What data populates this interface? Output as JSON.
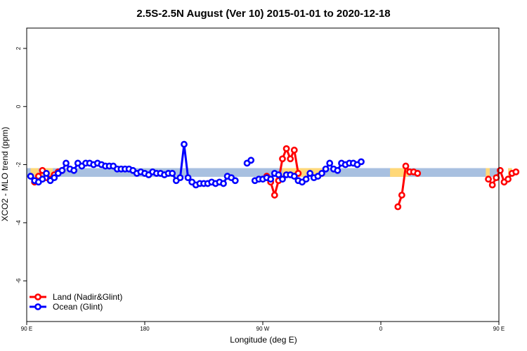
{
  "chart_data": {
    "type": "line",
    "title": "2.5S-2.5N August (Ver 10)   2015-01-01 to 2020-12-18",
    "xlabel": "Longitude (deg E)",
    "ylabel": "XCO2 - MLO trend (ppm)",
    "xlim": [
      90,
      450
    ],
    "ylim": [
      -7.4,
      2.7
    ],
    "x_ticks": [
      90,
      180,
      270,
      360,
      450,
      540
    ],
    "x_tick_labels": [
      "90 E",
      "180",
      "90 W",
      "0",
      "90 E",
      "180"
    ],
    "y_ticks": [
      2,
      0,
      -2,
      -4,
      -6
    ],
    "y_tick_labels": [
      "2",
      "0",
      "-2",
      "-4",
      "-6"
    ],
    "grid": false,
    "legend_position": "bottom-left",
    "background_band": {
      "y_range": [
        -2.42,
        -2.12
      ],
      "color": "#a8c0e0",
      "highlight_color": "#ffd878",
      "highlight_x_ranges": [
        [
          93,
          99
        ],
        [
          100,
          110
        ],
        [
          285,
          317
        ],
        [
          367,
          381
        ],
        [
          440,
          443
        ],
        [
          457,
          460
        ]
      ]
    },
    "series": [
      {
        "name": "Land (Nadir&Glint)",
        "color": "#ff0000",
        "segments": [
          [
            [
              96,
              -2.6
            ],
            [
              99,
              -2.4
            ],
            [
              102,
              -2.2
            ],
            [
              105,
              -2.45
            ],
            [
              108,
              -2.5
            ],
            [
              111,
              -2.35
            ],
            [
              114,
              -2.25
            ],
            [
              117,
              -2.2
            ]
          ],
          [
            [
              273,
              -2.4
            ],
            [
              276,
              -2.6
            ],
            [
              279,
              -3.05
            ],
            [
              282,
              -2.55
            ],
            [
              285,
              -1.8
            ],
            [
              288,
              -1.45
            ],
            [
              291,
              -1.8
            ],
            [
              294,
              -1.5
            ],
            [
              297,
              -2.3
            ]
          ],
          [
            [
              373,
              -3.45
            ],
            [
              376,
              -3.05
            ],
            [
              379,
              -2.05
            ],
            [
              382,
              -2.25
            ],
            [
              385,
              -2.25
            ],
            [
              388,
              -2.3
            ]
          ],
          [
            [
              442,
              -2.5
            ],
            [
              445,
              -2.7
            ],
            [
              448,
              -2.45
            ],
            [
              451,
              -2.2
            ],
            [
              454,
              -2.6
            ],
            [
              457,
              -2.5
            ],
            [
              460,
              -2.3
            ],
            [
              463,
              -2.25
            ]
          ]
        ]
      },
      {
        "name": "Ocean (Glint)",
        "color": "#0000ff",
        "segments": [
          [
            [
              93,
              -2.4
            ],
            [
              96,
              -2.55
            ],
            [
              99,
              -2.6
            ],
            [
              102,
              -2.5
            ],
            [
              105,
              -2.3
            ],
            [
              108,
              -2.55
            ],
            [
              111,
              -2.45
            ],
            [
              114,
              -2.3
            ],
            [
              117,
              -2.2
            ],
            [
              120,
              -1.95
            ],
            [
              123,
              -2.15
            ],
            [
              126,
              -2.2
            ],
            [
              129,
              -1.95
            ],
            [
              132,
              -2.05
            ],
            [
              135,
              -1.95
            ],
            [
              138,
              -1.95
            ],
            [
              141,
              -2.0
            ],
            [
              144,
              -1.95
            ],
            [
              147,
              -2.0
            ],
            [
              150,
              -2.05
            ],
            [
              153,
              -2.05
            ],
            [
              156,
              -2.05
            ],
            [
              159,
              -2.15
            ],
            [
              162,
              -2.15
            ],
            [
              165,
              -2.15
            ],
            [
              168,
              -2.15
            ],
            [
              171,
              -2.2
            ],
            [
              174,
              -2.3
            ],
            [
              177,
              -2.25
            ],
            [
              180,
              -2.3
            ],
            [
              183,
              -2.35
            ],
            [
              186,
              -2.25
            ],
            [
              189,
              -2.3
            ],
            [
              192,
              -2.3
            ],
            [
              195,
              -2.35
            ],
            [
              198,
              -2.3
            ],
            [
              201,
              -2.3
            ],
            [
              204,
              -2.55
            ],
            [
              207,
              -2.45
            ],
            [
              210,
              -1.3
            ],
            [
              213,
              -2.45
            ],
            [
              216,
              -2.6
            ],
            [
              219,
              -2.7
            ],
            [
              222,
              -2.65
            ],
            [
              225,
              -2.65
            ],
            [
              228,
              -2.65
            ],
            [
              231,
              -2.6
            ],
            [
              234,
              -2.65
            ],
            [
              237,
              -2.6
            ],
            [
              240,
              -2.65
            ],
            [
              243,
              -2.4
            ],
            [
              246,
              -2.45
            ],
            [
              249,
              -2.55
            ]
          ],
          [
            [
              258,
              -1.95
            ],
            [
              261,
              -1.85
            ]
          ],
          [
            [
              264,
              -2.55
            ],
            [
              267,
              -2.5
            ],
            [
              270,
              -2.5
            ],
            [
              273,
              -2.45
            ],
            [
              276,
              -2.5
            ],
            [
              279,
              -2.3
            ],
            [
              282,
              -2.35
            ],
            [
              285,
              -2.5
            ],
            [
              288,
              -2.35
            ],
            [
              291,
              -2.35
            ],
            [
              294,
              -2.4
            ],
            [
              297,
              -2.55
            ],
            [
              300,
              -2.6
            ],
            [
              303,
              -2.5
            ],
            [
              306,
              -2.3
            ],
            [
              309,
              -2.45
            ],
            [
              312,
              -2.4
            ],
            [
              315,
              -2.3
            ],
            [
              318,
              -2.15
            ],
            [
              321,
              -1.95
            ],
            [
              324,
              -2.15
            ],
            [
              327,
              -2.2
            ],
            [
              330,
              -1.95
            ],
            [
              333,
              -2.0
            ],
            [
              336,
              -1.95
            ],
            [
              339,
              -1.95
            ],
            [
              342,
              -2.0
            ],
            [
              345,
              -1.9
            ]
          ]
        ]
      }
    ]
  }
}
